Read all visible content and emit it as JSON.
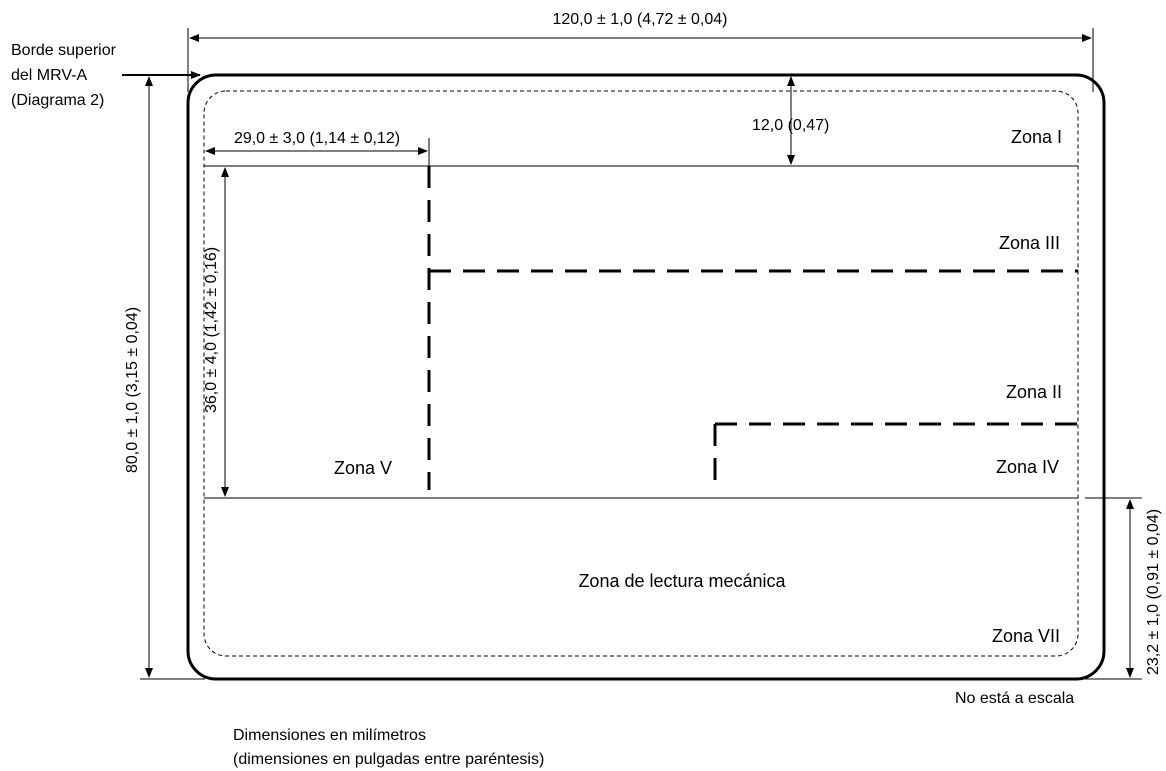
{
  "labels": {
    "top_edge_note": [
      "Borde superior",
      "del MRV-A",
      "(Diagrama 2)"
    ],
    "width_dim": "120,0 ± 1,0 (4,72 ± 0,04)",
    "height_dim": "80,0 ± 1,0 (3,15 ± 0,04)",
    "zone1_depth": "12,0 (0,47)",
    "left_offset": "29,0 ± 3,0 (1,14 ± 0,12)",
    "zone5_height": "36,0 ± 4,0 (1,42 ± 0,16)",
    "mrz_height": "23,2 ± 1,0 (0,91 ± 0,04)",
    "not_to_scale": "No está a escala",
    "units_note": [
      "Dimensiones en milímetros",
      "(dimensiones en pulgadas entre paréntesis)"
    ]
  },
  "zones": {
    "zone_1": "Zona I",
    "zone_2": "Zona II",
    "zone_3": "Zona III",
    "zone_4": "Zona IV",
    "zone_5": "Zona V",
    "zone_7": "Zona VII",
    "mrz": "Zona de lectura mecánica"
  }
}
